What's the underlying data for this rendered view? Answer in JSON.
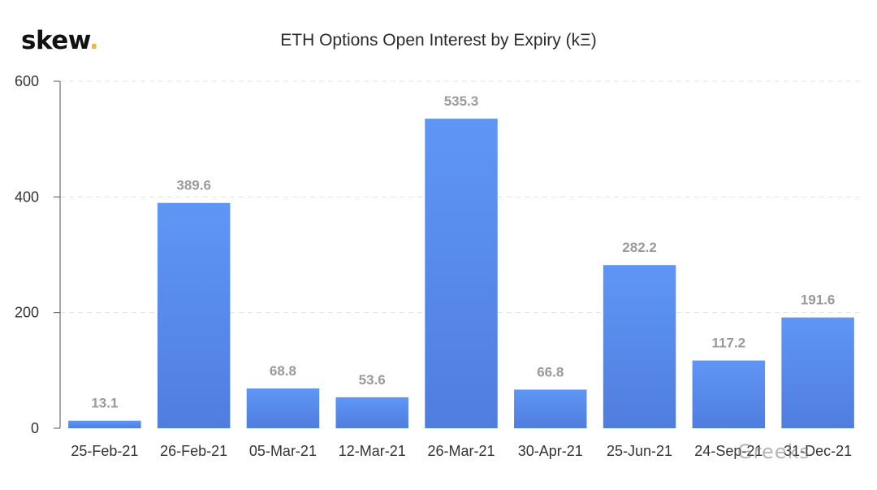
{
  "brand": {
    "name": "skew",
    "dot": ".",
    "dot_color": "#f2b53a"
  },
  "watermark": "Greeks",
  "chart_data": {
    "type": "bar",
    "title": "ETH Options Open Interest by Expiry (kΞ)",
    "xlabel": "",
    "ylabel": "",
    "ylim": [
      0,
      600
    ],
    "yticks": [
      0,
      200,
      400,
      600
    ],
    "grid": true,
    "categories": [
      "25-Feb-21",
      "26-Feb-21",
      "05-Mar-21",
      "12-Mar-21",
      "26-Mar-21",
      "30-Apr-21",
      "25-Jun-21",
      "24-Sep-21",
      "31-Dec-21"
    ],
    "values": [
      13.1,
      389.6,
      68.8,
      53.6,
      535.3,
      66.8,
      282.2,
      117.2,
      191.6
    ],
    "bar_color_top": "#5f96f5",
    "bar_color_bottom": "#4f7de0",
    "label_color": "#9a9a9a"
  }
}
